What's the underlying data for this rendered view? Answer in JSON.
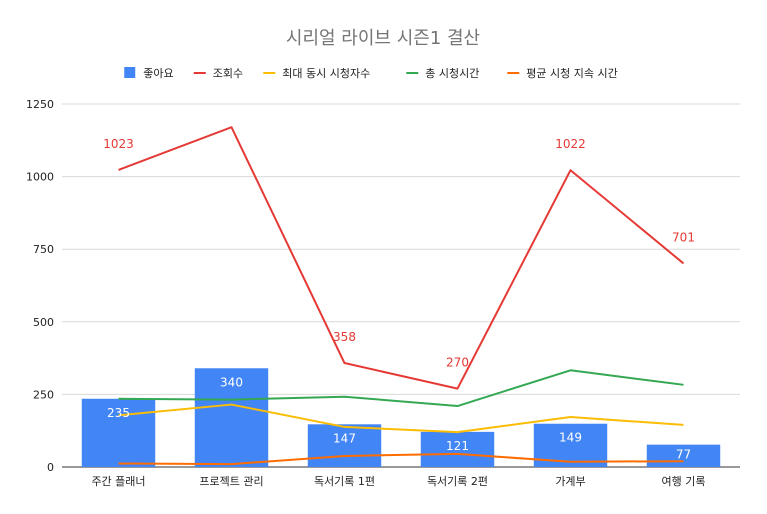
{
  "chart_data": {
    "type": "bar",
    "title": "시리얼 라이브 시즌1 결산",
    "xlabel": "",
    "ylabel": "",
    "ylim": [
      0,
      1250
    ],
    "yticks": [
      0,
      250,
      500,
      750,
      1000,
      1250
    ],
    "grid": true,
    "legend_position": "top",
    "categories": [
      "주간 플래너",
      "프로젝트 관리",
      "독서기록 1편",
      "독서기록 2편",
      "가계부",
      "여행 기록"
    ],
    "series": [
      {
        "name": "좋아요",
        "kind": "bar",
        "color": "#4285f4",
        "values": [
          235,
          340,
          147,
          121,
          149,
          77
        ]
      },
      {
        "name": "조회수",
        "kind": "line",
        "color": "#e53935",
        "values": [
          1023,
          1170,
          358,
          270,
          1022,
          701
        ]
      },
      {
        "name": "최대 동시 시청자수",
        "kind": "line",
        "color": "#fbbc04",
        "values": [
          178,
          215,
          138,
          120,
          172,
          145
        ]
      },
      {
        "name": "총 시청시간",
        "kind": "line",
        "color": "#34a853",
        "values": [
          235,
          232,
          242,
          210,
          333,
          283
        ]
      },
      {
        "name": "평균 시청 지속 시간",
        "kind": "line",
        "color": "#ff6d01",
        "values": [
          12,
          10,
          38,
          45,
          18,
          20
        ]
      }
    ],
    "data_labels": {
      "좋아요": [
        "235",
        "340",
        "147",
        "121",
        "149",
        "77"
      ],
      "조회수": [
        "1023",
        "",
        "358",
        "270",
        "1022",
        "701"
      ]
    }
  }
}
